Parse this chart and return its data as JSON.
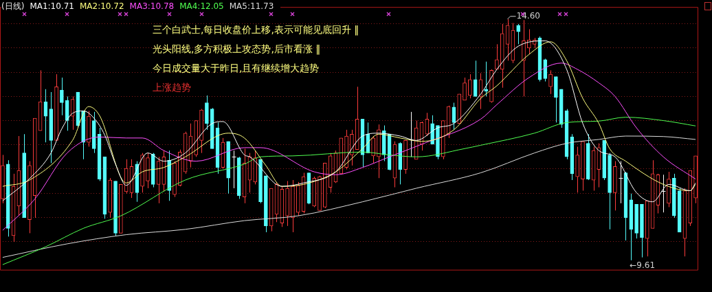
{
  "chart_data": {
    "type": "candlestick",
    "title": "(日线)",
    "legend": "top left",
    "grid": "y",
    "ylim": [
      9.4,
      14.85
    ],
    "yticks": [
      {
        "value": 10,
        "label": null
      },
      {
        "value": 10.5,
        "label": null
      },
      {
        "value": 11,
        "label": null
      },
      {
        "value": 11.5,
        "label": null
      },
      {
        "value": 12,
        "label": null
      },
      {
        "value": 12.5,
        "label": null
      },
      {
        "value": 13,
        "label": null
      },
      {
        "value": 13.5,
        "label": null
      },
      {
        "value": 14,
        "label": null
      },
      {
        "value": 14.5,
        "label": null
      }
    ],
    "categories": [
      null,
      null,
      null,
      null,
      null,
      null,
      null,
      null,
      null,
      null,
      null,
      null,
      null,
      null,
      null,
      null,
      null,
      null,
      null,
      null,
      null,
      null,
      null,
      null,
      null,
      null,
      null,
      null,
      null,
      null,
      null,
      null,
      null,
      null,
      null,
      null,
      null,
      null,
      null,
      null,
      null,
      null,
      null,
      null,
      null,
      null,
      null,
      null,
      null,
      null,
      null,
      null,
      null,
      null,
      null,
      null,
      null,
      null,
      null,
      null,
      null,
      null,
      null,
      null,
      null,
      null,
      null,
      null,
      null,
      null,
      null,
      null,
      null,
      null,
      null,
      null,
      null,
      null,
      null,
      null,
      null,
      null,
      null,
      null,
      null,
      null,
      null,
      null,
      null,
      null,
      null,
      null,
      null,
      null,
      null,
      null,
      null,
      null,
      null,
      null,
      null,
      null,
      null,
      null,
      null,
      null,
      null,
      null,
      null,
      null,
      null,
      null,
      null,
      null,
      null,
      null,
      null,
      null,
      null,
      null,
      null,
      null,
      null,
      null,
      null,
      null,
      null,
      null,
      null,
      null
    ],
    "ohlc": [
      [
        10.88,
        11.79,
        10.79,
        11.57
      ],
      [
        11.6,
        11.68,
        10.1,
        10.27
      ],
      [
        10.12,
        11.4,
        9.99,
        11.14
      ],
      [
        10.73,
        12.18,
        10.53,
        11.47
      ],
      [
        11.83,
        12.22,
        10.49,
        10.49
      ],
      [
        10.45,
        11.66,
        10.17,
        11.57
      ],
      [
        10.95,
        12.55,
        10.49,
        12.55
      ],
      [
        12.29,
        13.54,
        12.29,
        12.89
      ],
      [
        12.89,
        13.15,
        12.05,
        12.59
      ],
      [
        12.74,
        13.09,
        11.62,
        12.09
      ],
      [
        12.09,
        13.46,
        12.09,
        13.2
      ],
      [
        13.13,
        13.39,
        12.61,
        12.87
      ],
      [
        12.92,
        13.0,
        12.29,
        12.5
      ],
      [
        12.59,
        13.0,
        12.31,
        12.94
      ],
      [
        13.09,
        13.09,
        12.35,
        12.4
      ],
      [
        12.7,
        12.7,
        11.7,
        12.05
      ],
      [
        12.05,
        12.7,
        11.96,
        12.59
      ],
      [
        12.5,
        12.68,
        11.83,
        11.92
      ],
      [
        12.22,
        12.35,
        11.25,
        11.29
      ],
      [
        11.75,
        11.75,
        10.47,
        10.56
      ],
      [
        10.6,
        11.31,
        10.49,
        11.27
      ],
      [
        11.25,
        11.25,
        10.12,
        10.17
      ],
      [
        10.17,
        11.18,
        10.17,
        11.18
      ],
      [
        11.03,
        11.7,
        10.99,
        11.51
      ],
      [
        11.01,
        11.7,
        10.9,
        11.55
      ],
      [
        11.6,
        11.66,
        10.82,
        11.01
      ],
      [
        11.14,
        11.83,
        11.01,
        11.79
      ],
      [
        11.25,
        11.83,
        11.1,
        11.73
      ],
      [
        11.81,
        11.83,
        11.12,
        11.18
      ],
      [
        11.18,
        11.75,
        10.79,
        11.66
      ],
      [
        11.18,
        11.88,
        11.03,
        11.75
      ],
      [
        11.68,
        11.88,
        10.84,
        11.05
      ],
      [
        10.97,
        11.66,
        10.92,
        11.62
      ],
      [
        11.16,
        11.9,
        11.14,
        11.85
      ],
      [
        11.44,
        12.27,
        11.4,
        12.24
      ],
      [
        11.66,
        12.44,
        11.53,
        12.18
      ],
      [
        11.79,
        12.5,
        11.75,
        12.5
      ],
      [
        12.09,
        12.74,
        11.83,
        12.72
      ],
      [
        12.87,
        13.02,
        12.31,
        12.44
      ],
      [
        12.74,
        12.76,
        11.92,
        11.92
      ],
      [
        12.35,
        12.46,
        11.4,
        11.53
      ],
      [
        11.53,
        12.14,
        11.51,
        12.05
      ],
      [
        12.07,
        12.07,
        10.99,
        11.31
      ],
      [
        11.75,
        11.88,
        11.1,
        11.75
      ],
      [
        11.73,
        11.75,
        10.88,
        10.95
      ],
      [
        10.92,
        11.92,
        10.79,
        11.62
      ],
      [
        11.27,
        11.83,
        11.01,
        11.75
      ],
      [
        11.23,
        11.88,
        11.18,
        11.73
      ],
      [
        11.7,
        11.7,
        10.79,
        10.82
      ],
      [
        11.36,
        11.36,
        10.19,
        10.32
      ],
      [
        10.32,
        11.1,
        10.21,
        11.1
      ],
      [
        10.56,
        11.23,
        10.4,
        11.18
      ],
      [
        10.38,
        11.14,
        10.3,
        11.08
      ],
      [
        10.53,
        11.25,
        10.32,
        11.1
      ],
      [
        10.49,
        11.27,
        10.19,
        11.14
      ],
      [
        10.6,
        11.23,
        10.53,
        11.16
      ],
      [
        10.62,
        11.42,
        10.58,
        11.34
      ],
      [
        11.42,
        11.42,
        10.77,
        10.79
      ],
      [
        10.73,
        11.34,
        10.71,
        11.31
      ],
      [
        10.64,
        11.36,
        10.64,
        11.34
      ],
      [
        10.71,
        11.62,
        10.69,
        11.62
      ],
      [
        11.12,
        11.83,
        11.01,
        11.77
      ],
      [
        11.23,
        11.88,
        11.21,
        11.83
      ],
      [
        11.4,
        12.14,
        11.4,
        12.14
      ],
      [
        11.53,
        12.31,
        11.49,
        12.18
      ],
      [
        11.79,
        12.31,
        11.57,
        12.22
      ],
      [
        11.9,
        13.2,
        11.9,
        12.53
      ],
      [
        12.53,
        12.53,
        11.53,
        11.79
      ],
      [
        12.22,
        12.46,
        11.83,
        11.83
      ],
      [
        11.77,
        12.18,
        11.62,
        12.14
      ],
      [
        11.75,
        12.42,
        11.31,
        12.31
      ],
      [
        12.29,
        12.4,
        11.66,
        11.79
      ],
      [
        12.22,
        12.22,
        11.47,
        11.49
      ],
      [
        11.31,
        12.07,
        11.12,
        12.01
      ],
      [
        12.03,
        12.05,
        11.18,
        11.49
      ],
      [
        11.49,
        12.09,
        11.4,
        12.09
      ],
      [
        12.11,
        12.68,
        11.75,
        12.11
      ],
      [
        11.7,
        12.5,
        11.7,
        12.35
      ],
      [
        12.01,
        12.48,
        11.88,
        12.46
      ],
      [
        12.22,
        12.66,
        12.18,
        12.53
      ],
      [
        12.44,
        12.61,
        12.01,
        12.01
      ],
      [
        12.4,
        12.4,
        11.7,
        11.75
      ],
      [
        11.75,
        12.5,
        11.7,
        12.5
      ],
      [
        12.22,
        12.81,
        12.14,
        12.79
      ],
      [
        12.78,
        12.87,
        12.31,
        12.46
      ],
      [
        12.44,
        13.05,
        12.44,
        13.05
      ],
      [
        12.92,
        13.39,
        12.92,
        13.28
      ],
      [
        13.02,
        13.46,
        12.96,
        13.35
      ],
      [
        13.35,
        13.74,
        13.0,
        13.0
      ],
      [
        13.0,
        13.48,
        12.74,
        13.35
      ],
      [
        13.15,
        13.72,
        13.0,
        13.11
      ],
      [
        12.89,
        13.56,
        12.87,
        13.54
      ],
      [
        13.56,
        14.08,
        13.56,
        13.76
      ],
      [
        13.56,
        14.5,
        13.18,
        14.3
      ],
      [
        14.08,
        14.6,
        13.74,
        14.47
      ],
      [
        13.74,
        14.52,
        13.69,
        14.37
      ],
      [
        14.47,
        14.5,
        14.08,
        14.34
      ],
      [
        13.74,
        14.58,
        13.0,
        14.15
      ],
      [
        14.0,
        14.39,
        13.87,
        14.17
      ],
      [
        14.08,
        14.21,
        14.0,
        14.17
      ],
      [
        14.21,
        14.24,
        13.31,
        13.35
      ],
      [
        13.76,
        13.78,
        13.31,
        13.37
      ],
      [
        13.2,
        13.54,
        13.05,
        13.46
      ],
      [
        13.41,
        13.41,
        12.46,
        12.98
      ],
      [
        13.15,
        13.15,
        12.35,
        12.42
      ],
      [
        12.7,
        12.74,
        11.7,
        11.75
      ],
      [
        12.16,
        12.22,
        11.27,
        11.4
      ],
      [
        11.34,
        11.96,
        11.01,
        11.79
      ],
      [
        11.29,
        12.07,
        11.05,
        12.07
      ],
      [
        12.03,
        12.22,
        11.27,
        11.29
      ],
      [
        11.27,
        11.96,
        11.05,
        11.88
      ],
      [
        11.49,
        12.03,
        11.12,
        11.94
      ],
      [
        12.09,
        12.09,
        11.27,
        11.31
      ],
      [
        11.79,
        11.83,
        10.25,
        11.01
      ],
      [
        11.01,
        11.66,
        10.64,
        11.55
      ],
      [
        11.32,
        11.66,
        10.79,
        11.32
      ],
      [
        11.42,
        11.44,
        10.02,
        10.49
      ],
      [
        10.86,
        10.99,
        9.61,
        10.25
      ],
      [
        10.77,
        10.77,
        10.06,
        10.17
      ],
      [
        10.77,
        10.77,
        9.67,
        10.08
      ],
      [
        10.06,
        10.84,
        9.69,
        10.84
      ],
      [
        10.27,
        11.68,
        10.27,
        11.4
      ],
      [
        10.75,
        11.4,
        10.58,
        11.38
      ],
      [
        11.05,
        11.38,
        10.6,
        11.05
      ],
      [
        10.79,
        11.44,
        10.71,
        11.29
      ],
      [
        11.31,
        11.4,
        10.49,
        10.53
      ],
      [
        11.05,
        11.1,
        10.19,
        10.19
      ],
      [
        10.06,
        11.1,
        9.69,
        11.05
      ],
      [
        10.38,
        11.47,
        10.32,
        11.47
      ],
      [
        10.9,
        11.77,
        10.79,
        11.77
      ]
    ],
    "colors": [
      "#ff3c3c",
      "#54fcfc",
      "#ff3c3c",
      "#ff3c3c",
      "#54fcfc",
      "#ff3c3c",
      "#ff3c3c",
      "#ff3c3c",
      "#54fcfc",
      "#54fcfc",
      "#ff3c3c",
      "#54fcfc",
      "#54fcfc",
      "#ff3c3c",
      "#54fcfc",
      "#54fcfc",
      "#ff3c3c",
      "#54fcfc",
      "#54fcfc",
      "#54fcfc",
      "#ff3c3c",
      "#54fcfc",
      "#ff3c3c",
      "#ff3c3c",
      "#ff3c3c",
      "#54fcfc",
      "#ff3c3c",
      "#ff3c3c",
      "#54fcfc",
      "#ff3c3c",
      "#ff3c3c",
      "#54fcfc",
      "#ff3c3c",
      "#ff3c3c",
      "#ff3c3c",
      "#ff3c3c",
      "#ff3c3c",
      "#ff3c3c",
      "#54fcfc",
      "#54fcfc",
      "#54fcfc",
      "#ff3c3c",
      "#54fcfc",
      "#ffffff",
      "#54fcfc",
      "#ff3c3c",
      "#ff3c3c",
      "#ff3c3c",
      "#54fcfc",
      "#54fcfc",
      "#ff3c3c",
      "#ff3c3c",
      "#ff3c3c",
      "#ff3c3c",
      "#ff3c3c",
      "#ff3c3c",
      "#ff3c3c",
      "#54fcfc",
      "#ff3c3c",
      "#ff3c3c",
      "#ff3c3c",
      "#ff3c3c",
      "#ff3c3c",
      "#ff3c3c",
      "#ff3c3c",
      "#ff3c3c",
      "#ff3c3c",
      "#54fcfc",
      "#54fcfc",
      "#ff3c3c",
      "#ff3c3c",
      "#54fcfc",
      "#54fcfc",
      "#ff3c3c",
      "#54fcfc",
      "#ff3c3c",
      "#ffffff",
      "#ff3c3c",
      "#ff3c3c",
      "#ff3c3c",
      "#54fcfc",
      "#54fcfc",
      "#ff3c3c",
      "#ff3c3c",
      "#54fcfc",
      "#ff3c3c",
      "#ff3c3c",
      "#ff3c3c",
      "#54fcfc",
      "#ff3c3c",
      "#54fcfc",
      "#ff3c3c",
      "#ff3c3c",
      "#ff3c3c",
      "#ff3c3c",
      "#ff3c3c",
      "#54fcfc",
      "#ff3c3c",
      "#ff3c3c",
      "#ff3c3c",
      "#54fcfc",
      "#54fcfc",
      "#ff3c3c",
      "#54fcfc",
      "#54fcfc",
      "#54fcfc",
      "#54fcfc",
      "#ff3c3c",
      "#ff3c3c",
      "#54fcfc",
      "#ff3c3c",
      "#ff3c3c",
      "#54fcfc",
      "#54fcfc",
      "#ff3c3c",
      "#ffffff",
      "#54fcfc",
      "#54fcfc",
      "#54fcfc",
      "#54fcfc",
      "#ff3c3c",
      "#ff3c3c",
      "#ff3c3c",
      "#ffffff",
      "#ff3c3c",
      "#54fcfc",
      "#54fcfc",
      "#ff3c3c",
      "#ff3c3c",
      "#ff3c3c"
    ],
    "series": [
      {
        "type": "line",
        "name": "MA1:10.71",
        "color": "#ffffff",
        "values": [
          10.84,
          null,
          null,
          null,
          null,
          11.3,
          null,
          null,
          null,
          11.83,
          null,
          12.33,
          null,
          12.65,
          null,
          12.7,
          null,
          12.55,
          null,
          12.2,
          null,
          11.6,
          null,
          11.16,
          null,
          null,
          null,
          11.83,
          null,
          null,
          11.66,
          null,
          null,
          null,
          11.83,
          null,
          null,
          null,
          null,
          12.44,
          null,
          12.48,
          null,
          null,
          null,
          11.79,
          11.75,
          null,
          null,
          null,
          null,
          null,
          11.14,
          null,
          null,
          null,
          11.21,
          null,
          null,
          null,
          null,
          null,
          11.44,
          null,
          null,
          null,
          null,
          12.18,
          null,
          null,
          12.24,
          null,
          null,
          null,
          12.18,
          null,
          null,
          12.09,
          null,
          null,
          null,
          12.35,
          null,
          null,
          12.44,
          null,
          null,
          null,
          null,
          13.05,
          null,
          null,
          13.56,
          null,
          null,
          null,
          14.04,
          null,
          null,
          null,
          null,
          14.15,
          null,
          null,
          null,
          13.56,
          null,
          null,
          12.44,
          null,
          null,
          11.88,
          null,
          null,
          11.75,
          null,
          null,
          null,
          11.01,
          null,
          null,
          10.82,
          null,
          null,
          11.18,
          null,
          null,
          null,
          11.05,
          11.21
        ]
      },
      {
        "type": "line",
        "name": "MA2:10.72",
        "color": "#ffff80",
        "values": [
          11.14,
          null,
          null,
          null,
          null,
          11.27,
          null,
          null,
          null,
          null,
          null,
          null,
          null,
          12.09,
          null,
          null,
          12.79,
          null,
          12.61,
          null,
          null,
          null,
          null,
          11.21,
          null,
          null,
          11.44,
          null,
          null,
          null,
          11.53,
          null,
          null,
          null,
          11.75,
          null,
          null,
          null,
          null,
          null,
          null,
          null,
          12.24,
          null,
          null,
          12.14,
          null,
          null,
          null,
          11.57,
          null,
          null,
          11.14,
          null,
          null,
          null,
          11.18,
          null,
          null,
          null,
          null,
          null,
          11.44,
          null,
          null,
          null,
          null,
          11.92,
          null,
          null,
          12.22,
          null,
          null,
          null,
          12.14,
          null,
          null,
          null,
          12.07,
          null,
          null,
          null,
          null,
          null,
          12.31,
          null,
          null,
          null,
          null,
          12.96,
          null,
          null,
          13.22,
          null,
          null,
          null,
          null,
          null,
          13.87,
          null,
          null,
          null,
          14.13,
          null,
          null,
          13.74,
          null,
          null,
          12.96,
          null,
          null,
          12.44,
          null,
          11.92,
          null,
          null,
          11.66,
          null,
          null,
          null,
          null,
          null,
          null,
          11.18,
          null,
          null,
          null,
          null,
          11.05,
          11.18
        ]
      },
      {
        "type": "line",
        "name": "MA3:10.78",
        "color": "#ff50ff",
        "values": [
          10.23,
          null,
          null,
          null,
          null,
          null,
          10.88,
          null,
          null,
          null,
          null,
          null,
          11.83,
          null,
          null,
          null,
          null,
          null,
          12.16,
          null,
          null,
          null,
          null,
          12.14,
          null,
          null,
          12.14,
          null,
          null,
          null,
          11.88,
          null,
          null,
          null,
          null,
          null,
          11.66,
          null,
          null,
          null,
          null,
          null,
          null,
          null,
          null,
          11.94,
          null,
          null,
          11.94,
          null,
          null,
          null,
          null,
          null,
          null,
          null,
          null,
          null,
          11.44,
          null,
          null,
          null,
          11.38,
          null,
          null,
          null,
          null,
          11.53,
          null,
          null,
          null,
          null,
          11.75,
          null,
          null,
          null,
          null,
          null,
          12.01,
          null,
          null,
          null,
          null,
          null,
          null,
          null,
          null,
          null,
          null,
          12.53,
          null,
          null,
          12.83,
          null,
          null,
          null,
          null,
          null,
          13.39,
          null,
          null,
          null,
          null,
          null,
          13.69,
          null,
          null,
          13.56,
          null,
          null,
          null,
          13.28,
          null,
          null,
          13.0,
          null,
          null,
          null,
          12.35,
          null,
          null,
          null,
          null,
          11.75,
          null,
          null,
          null,
          null,
          null,
          11.29
        ]
      },
      {
        "type": "line",
        "name": "MA4:12.05",
        "color": "#50ff50",
        "values": [
          9.52,
          null,
          null,
          null,
          null,
          null,
          null,
          null,
          9.89,
          null,
          null,
          null,
          null,
          null,
          null,
          10.27,
          null,
          null,
          null,
          null,
          null,
          null,
          10.53,
          null,
          null,
          null,
          null,
          null,
          null,
          null,
          null,
          null,
          null,
          null,
          11.27,
          null,
          null,
          null,
          null,
          null,
          null,
          null,
          null,
          null,
          null,
          11.6,
          null,
          null,
          11.75,
          null,
          null,
          null,
          null,
          null,
          11.77,
          null,
          null,
          null,
          null,
          null,
          null,
          null,
          null,
          null,
          null,
          null,
          null,
          11.85,
          null,
          null,
          null,
          null,
          11.79,
          null,
          null,
          null,
          null,
          11.75,
          null,
          null,
          null,
          null,
          null,
          null,
          null,
          null,
          11.92,
          null,
          null,
          11.99,
          null,
          null,
          null,
          null,
          null,
          null,
          null,
          null,
          null,
          12.24,
          null,
          null,
          null,
          null,
          null,
          12.46,
          null,
          null,
          null,
          null,
          null,
          12.49,
          null,
          null,
          null,
          null,
          12.57,
          null,
          null,
          null,
          null,
          null,
          null,
          12.5,
          null,
          null,
          null,
          null,
          null,
          12.39
        ]
      },
      {
        "type": "line",
        "name": "MA5:11.73",
        "color": "#dcdcdc",
        "values": [
          9.67,
          null,
          null,
          null,
          null,
          null,
          null,
          null,
          null,
          null,
          null,
          null,
          9.95,
          null,
          null,
          null,
          null,
          null,
          null,
          null,
          null,
          null,
          null,
          10.14,
          null,
          null,
          null,
          null,
          null,
          null,
          null,
          null,
          null,
          null,
          10.25,
          null,
          null,
          null,
          null,
          null,
          null,
          null,
          null,
          null,
          null,
          10.43,
          null,
          null,
          null,
          null,
          null,
          null,
          null,
          null,
          null,
          10.53,
          null,
          null,
          null,
          null,
          null,
          null,
          null,
          null,
          null,
          null,
          null,
          10.82,
          null,
          null,
          null,
          null,
          null,
          null,
          null,
          null,
          null,
          11.1,
          null,
          null,
          null,
          null,
          null,
          null,
          null,
          null,
          null,
          null,
          null,
          11.42,
          null,
          null,
          null,
          null,
          null,
          null,
          null,
          null,
          null,
          11.83,
          null,
          null,
          null,
          null,
          null,
          12.03,
          null,
          null,
          null,
          null,
          null,
          12.11,
          null,
          null,
          null,
          null,
          12.18,
          null,
          null,
          null,
          null,
          null,
          null,
          12.17,
          null,
          null,
          null,
          null,
          null,
          12.11
        ]
      }
    ],
    "annotations": [
      "三个白武士,每日收盘价上移,表示可能见底回升 ‖",
      "光头阳线,多方积极上攻态势,后市看涨 ‖",
      "今日成交量大于昨日,且有继续增大趋势",
      "上涨趋势",
      "14.60",
      "←9.61"
    ]
  }
}
